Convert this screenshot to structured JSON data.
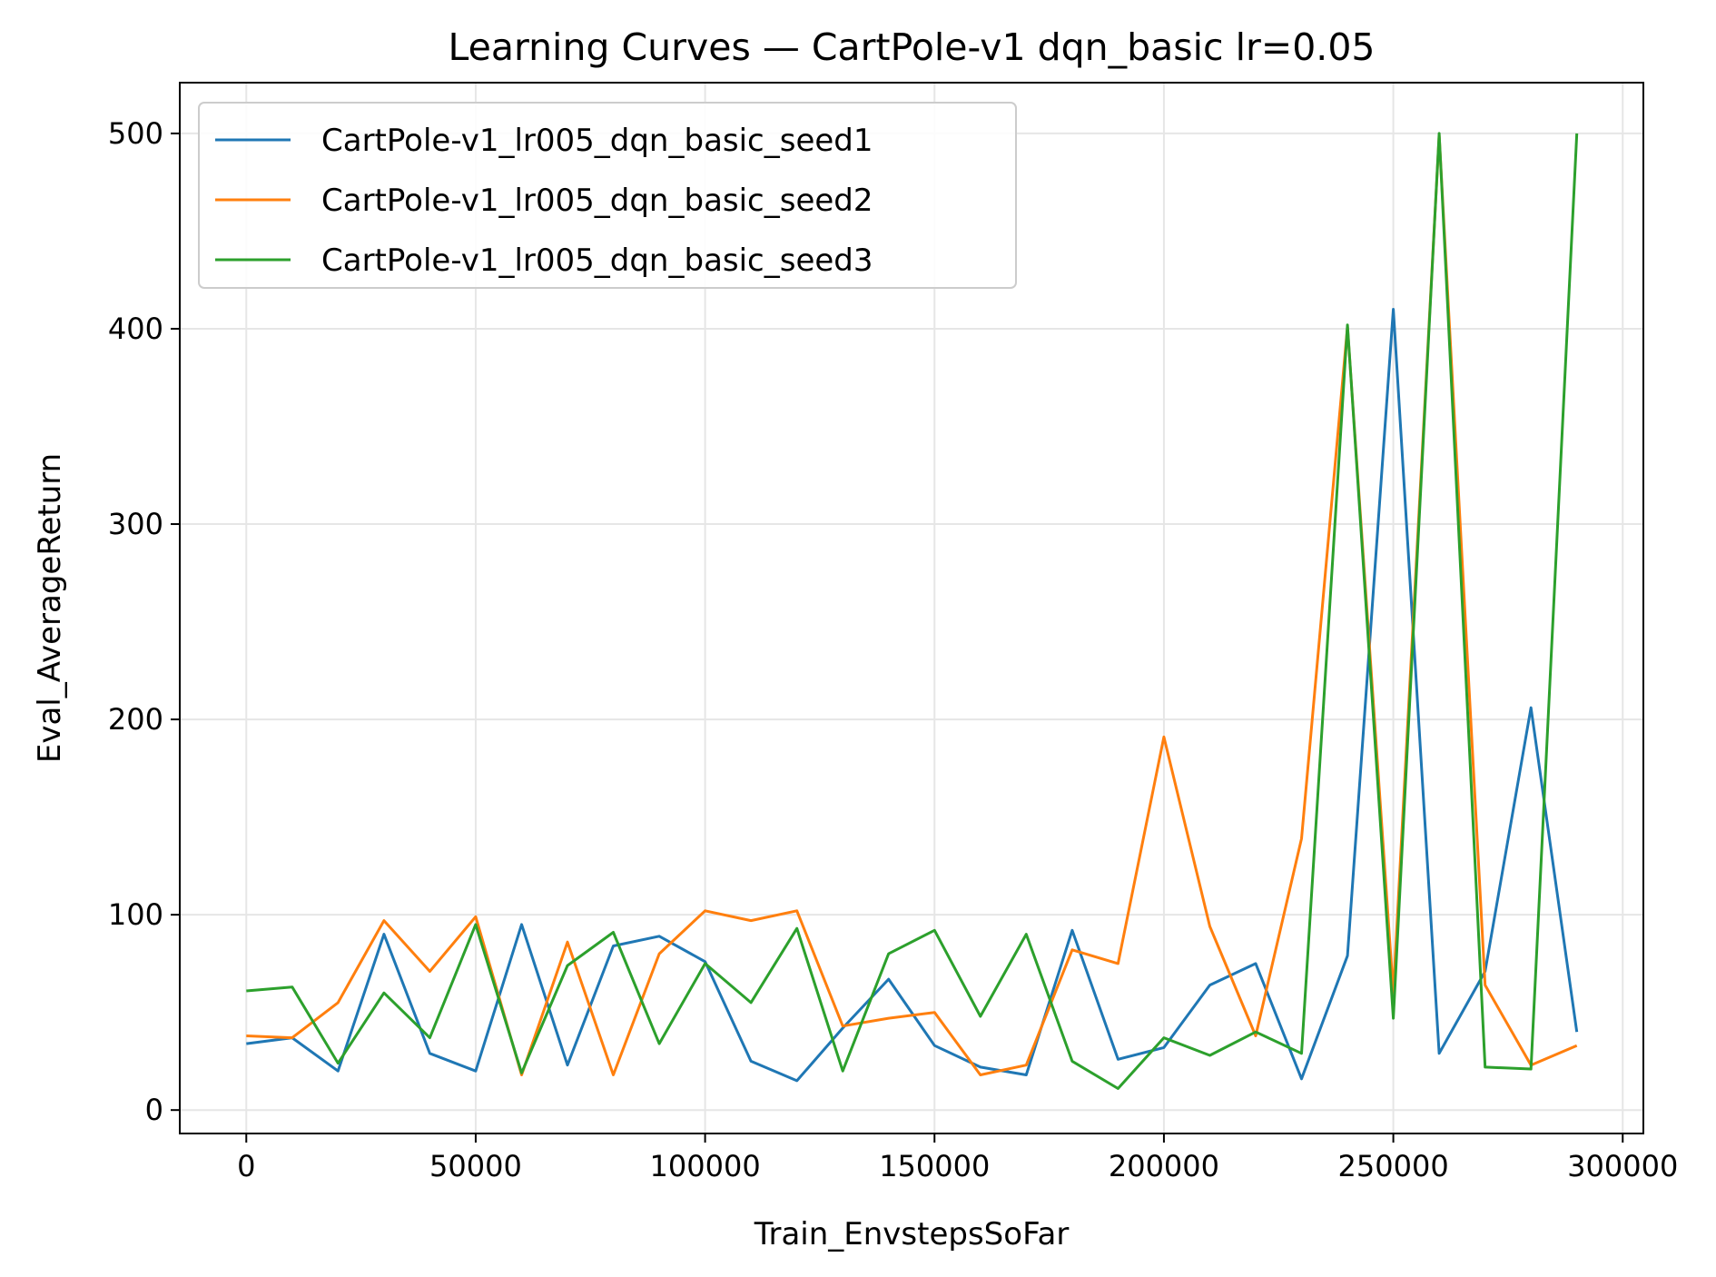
{
  "chart_data": {
    "type": "line",
    "title": "Learning Curves — CartPole-v1 dqn_basic lr=0.05",
    "xlabel": "Train_EnvstepsSoFar",
    "ylabel": "Eval_AverageReturn",
    "xlim": [
      -14500,
      304500
    ],
    "ylim": [
      -12,
      526
    ],
    "xticks": [
      0,
      50000,
      100000,
      150000,
      200000,
      250000,
      300000
    ],
    "yticks": [
      0,
      100,
      200,
      300,
      400,
      500
    ],
    "grid": true,
    "legend_position": "upper-left",
    "x": [
      0,
      10000,
      20000,
      30000,
      40000,
      50000,
      60000,
      70000,
      80000,
      90000,
      100000,
      110000,
      120000,
      130000,
      140000,
      150000,
      160000,
      170000,
      180000,
      190000,
      200000,
      210000,
      220000,
      230000,
      240000,
      250000,
      260000,
      270000,
      280000,
      290000
    ],
    "series": [
      {
        "name": "CartPole-v1_lr005_dqn_basic_seed1",
        "color": "#1f77b4",
        "values": [
          34,
          37,
          20,
          90,
          29,
          20,
          95,
          23,
          84,
          89,
          76,
          25,
          15,
          42,
          67,
          33,
          22,
          18,
          92,
          26,
          32,
          64,
          75,
          16,
          79,
          410,
          29,
          71,
          206,
          40
        ]
      },
      {
        "name": "CartPole-v1_lr005_dqn_basic_seed2",
        "color": "#ff7f0e",
        "values": [
          38,
          37,
          55,
          97,
          71,
          99,
          18,
          86,
          18,
          80,
          102,
          97,
          102,
          43,
          47,
          50,
          18,
          23,
          82,
          75,
          191,
          94,
          38,
          139,
          401,
          60,
          499,
          64,
          23,
          33
        ]
      },
      {
        "name": "CartPole-v1_lr005_dqn_basic_seed3",
        "color": "#2ca02c",
        "values": [
          61,
          63,
          24,
          60,
          37,
          95,
          19,
          74,
          91,
          34,
          75,
          55,
          93,
          20,
          80,
          92,
          48,
          90,
          25,
          11,
          37,
          28,
          40,
          29,
          402,
          47,
          500,
          22,
          21,
          500
        ]
      }
    ]
  }
}
